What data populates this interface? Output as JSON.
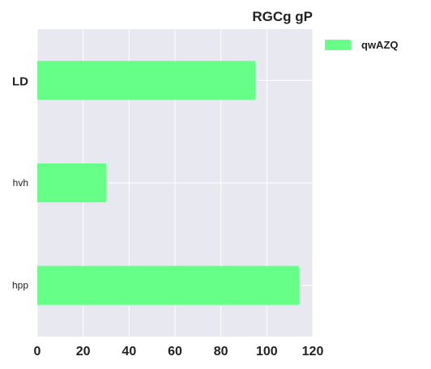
{
  "chart_data": {
    "type": "bar",
    "orientation": "horizontal",
    "title": "RGCg gP",
    "categories": [
      "LD",
      "hvh",
      "hpp"
    ],
    "series": [
      {
        "name": "qwAZQ",
        "values": [
          95,
          30,
          114
        ],
        "color": "#66ff88"
      }
    ],
    "xlim": [
      0,
      120
    ],
    "xticks": [
      0,
      20,
      40,
      60,
      80,
      100,
      120
    ],
    "xlabel": "",
    "ylabel": "",
    "grid": true,
    "legend_position": "outside-top-right",
    "plot_background": "#e8e8f0",
    "grid_color": "#ffffff"
  }
}
